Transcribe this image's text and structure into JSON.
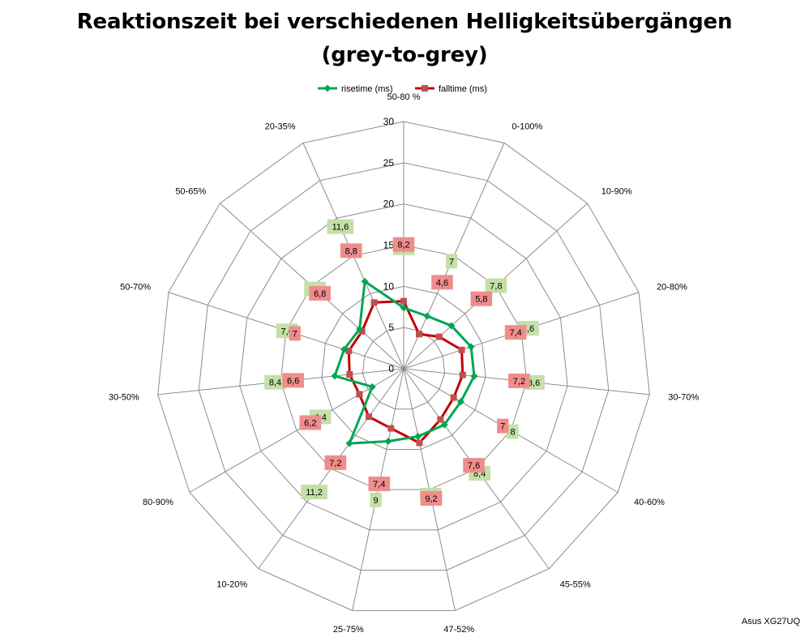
{
  "title_line1": "Reaktionszeit bei verschiedenen Helligkeitsübergängen",
  "title_line2": "(grey-to-grey)",
  "source_note": "Asus XG27UQ",
  "chart_data": {
    "type": "radar",
    "title": "Reaktionszeit bei verschiedenen Helligkeitsübergängen (grey-to-grey)",
    "categories": [
      "50-80 %",
      "0-100%",
      "10-90%",
      "20-80%",
      "30-70%",
      "40-60%",
      "45-55%",
      "47-52%",
      "25-75%",
      "10-20%",
      "80-90%",
      "30-50%",
      "50-70%",
      "50-65%",
      "20-35%"
    ],
    "rlim": [
      0,
      30
    ],
    "rticks": [
      0,
      5,
      10,
      15,
      20,
      25,
      30
    ],
    "grid": true,
    "legend_position": "top",
    "series": [
      {
        "name": "risetime (ms)",
        "color": "#00a651",
        "label_bg": "#c4e0a6",
        "values": [
          7.4,
          7,
          7.8,
          8.6,
          8.6,
          8,
          8.4,
          8.4,
          9,
          11.2,
          4.4,
          8.4,
          7.6,
          7.2,
          11.6
        ],
        "labels": [
          "7,4",
          "7",
          "7,8",
          "8,6",
          "8,6",
          "8",
          "8,4",
          "8,4",
          "9",
          "11,2",
          "4,4",
          "8,4",
          "7,6",
          "7,2",
          "11,6"
        ]
      },
      {
        "name": "falltime (ms)",
        "color": "#c00000",
        "marker_color": "#c0504d",
        "label_bg": "#f08c8c",
        "values": [
          8.2,
          4.6,
          5.8,
          7.4,
          7.2,
          7,
          7.6,
          9.2,
          7.4,
          7.2,
          6.2,
          6.6,
          7,
          6.8,
          8.8
        ],
        "labels": [
          "8,2",
          "4,6",
          "5,8",
          "7,4",
          "7,2",
          "7",
          "7,6",
          "9,2",
          "7,4",
          "7,2",
          "6,2",
          "6,6",
          "7",
          "6,8",
          "8,8"
        ]
      }
    ]
  }
}
